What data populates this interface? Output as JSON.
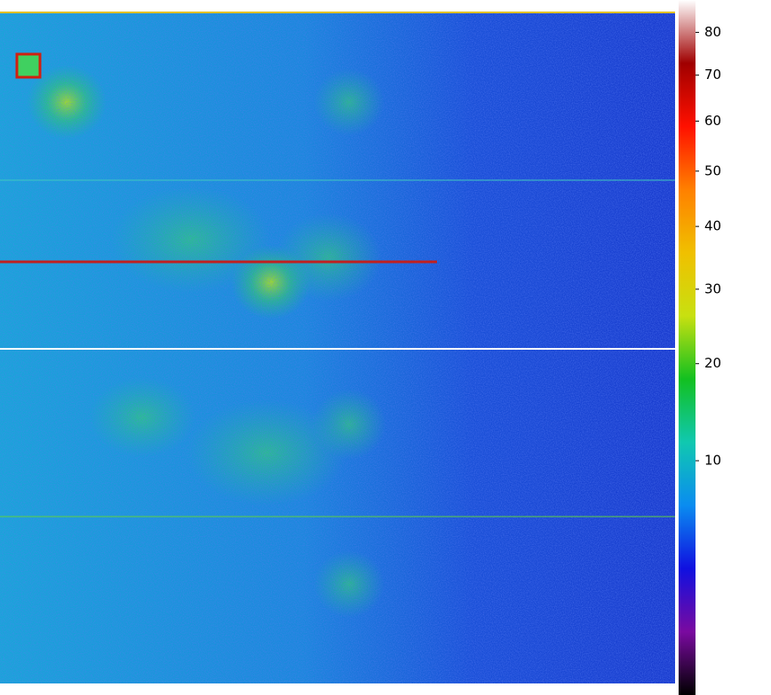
{
  "chart_data": {
    "type": "image",
    "colorbar": {
      "scale": "sqrt",
      "clim": [
        0,
        88
      ],
      "ticks": [
        10,
        20,
        30,
        40,
        50,
        60,
        70,
        80
      ],
      "colormap": [
        "#000000",
        "#7a0aa0",
        "#1010e0",
        "#0a8cf0",
        "#10c8b0",
        "#12c020",
        "#c8e010",
        "#f0c000",
        "#ff8000",
        "#ff1000",
        "#a00000",
        "#ffffff"
      ]
    }
  }
}
